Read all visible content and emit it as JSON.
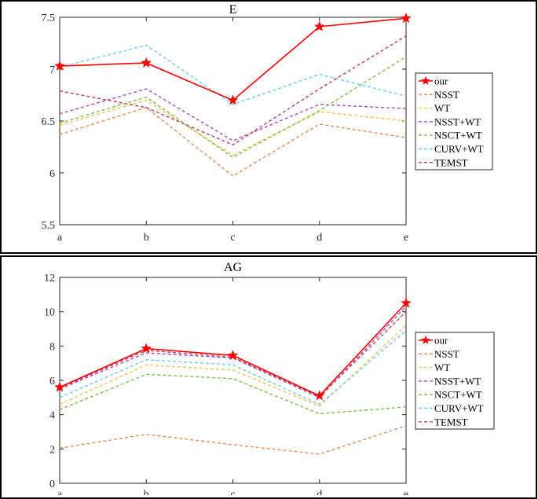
{
  "chart_data": [
    {
      "type": "line",
      "title": "E",
      "categories": [
        "a",
        "b",
        "c",
        "d",
        "e"
      ],
      "ylim": [
        5.5,
        7.5
      ],
      "yticks": [
        5.5,
        6,
        6.5,
        7,
        7.5
      ],
      "ytick_labels": [
        "5.5",
        "6",
        "6.5",
        "7",
        "7.5"
      ],
      "legend_position": "right",
      "series": [
        {
          "name": "our",
          "color": "#ff0000",
          "style": "solid-star",
          "values": [
            7.03,
            7.06,
            6.7,
            7.41,
            7.49
          ]
        },
        {
          "name": "NSST",
          "color": "#f0884e",
          "style": "dashed",
          "values": [
            6.37,
            6.63,
            5.97,
            6.47,
            6.34
          ]
        },
        {
          "name": "WT",
          "color": "#f6c24a",
          "style": "dashed",
          "values": [
            6.46,
            6.7,
            6.17,
            6.59,
            6.5
          ]
        },
        {
          "name": "NSST+WT",
          "color": "#a64ac6",
          "style": "dashed",
          "values": [
            6.57,
            6.81,
            6.31,
            6.66,
            6.62
          ]
        },
        {
          "name": "NSCT+WT",
          "color": "#7cbf45",
          "style": "dashed",
          "values": [
            6.48,
            6.73,
            6.15,
            6.6,
            7.12
          ]
        },
        {
          "name": "CURV+WT",
          "color": "#66ccee",
          "style": "dashed",
          "values": [
            7.02,
            7.23,
            6.66,
            6.95,
            6.74
          ]
        },
        {
          "name": "TEMST",
          "color": "#c63a5a",
          "style": "dashed",
          "values": [
            6.79,
            6.63,
            6.27,
            6.81,
            7.32
          ]
        }
      ]
    },
    {
      "type": "line",
      "title": "AG",
      "categories": [
        "a",
        "b",
        "c",
        "d",
        "e"
      ],
      "ylim": [
        0,
        12
      ],
      "yticks": [
        0,
        2,
        4,
        6,
        8,
        10,
        12
      ],
      "ytick_labels": [
        "0",
        "2",
        "4",
        "6",
        "8",
        "10",
        "12"
      ],
      "legend_position": "right",
      "series": [
        {
          "name": "our",
          "color": "#ff0000",
          "style": "solid-star",
          "values": [
            5.6,
            7.85,
            7.45,
            5.1,
            10.5
          ]
        },
        {
          "name": "NSST",
          "color": "#f0884e",
          "style": "dashed",
          "values": [
            2.05,
            2.85,
            2.25,
            1.7,
            3.35
          ]
        },
        {
          "name": "WT",
          "color": "#f6c24a",
          "style": "dashed",
          "values": [
            4.6,
            6.9,
            6.6,
            4.5,
            9.2
          ]
        },
        {
          "name": "NSST+WT",
          "color": "#a64ac6",
          "style": "dashed",
          "values": [
            5.5,
            7.6,
            7.3,
            5.0,
            10.3
          ]
        },
        {
          "name": "NSCT+WT",
          "color": "#7cbf45",
          "style": "dashed",
          "values": [
            4.3,
            6.35,
            6.1,
            4.05,
            4.45
          ]
        },
        {
          "name": "CURV+WT",
          "color": "#66ccee",
          "style": "dashed",
          "values": [
            5.0,
            7.2,
            6.9,
            4.6,
            8.9
          ]
        },
        {
          "name": "TEMST",
          "color": "#c63a5a",
          "style": "dashed",
          "values": [
            5.55,
            7.75,
            7.35,
            5.05,
            10.0
          ]
        }
      ]
    }
  ]
}
